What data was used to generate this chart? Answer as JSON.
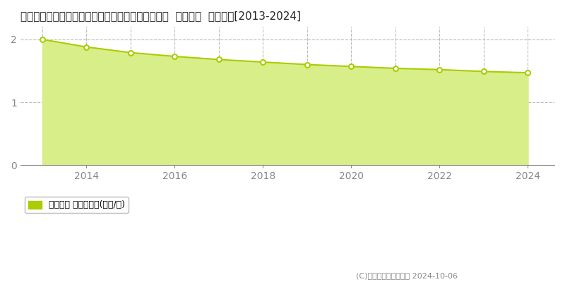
{
  "title": "青森県東津軽郡外ヶ浜町字平舘根岸湯の沢２１５番  基準地価  地価推移[2013-2024]",
  "years": [
    2013,
    2014,
    2015,
    2016,
    2017,
    2018,
    2019,
    2020,
    2021,
    2022,
    2023,
    2024
  ],
  "values": [
    2.0,
    1.88,
    1.79,
    1.73,
    1.68,
    1.64,
    1.6,
    1.57,
    1.54,
    1.52,
    1.49,
    1.47
  ],
  "line_color": "#aacc00",
  "fill_color": "#d8ee88",
  "marker_face_color": "#ffffff",
  "marker_edge_color": "#aacc00",
  "grid_color": "#bbbbbb",
  "axis_color": "#888888",
  "background_color": "#ffffff",
  "title_fontsize": 11,
  "ylim": [
    0,
    2.2
  ],
  "yticks": [
    0,
    1,
    2
  ],
  "xticks": [
    2014,
    2016,
    2018,
    2020,
    2022,
    2024
  ],
  "xgrid_years": [
    2013,
    2014,
    2015,
    2016,
    2017,
    2018,
    2019,
    2020,
    2021,
    2022,
    2023,
    2024
  ],
  "legend_label": "基準地価 平均坪単価(万円/坪)",
  "copyright_text": "(C)土地価格ドットコム 2024-10-06",
  "legend_color": "#aacc00",
  "xlim": [
    2012.5,
    2024.6
  ]
}
